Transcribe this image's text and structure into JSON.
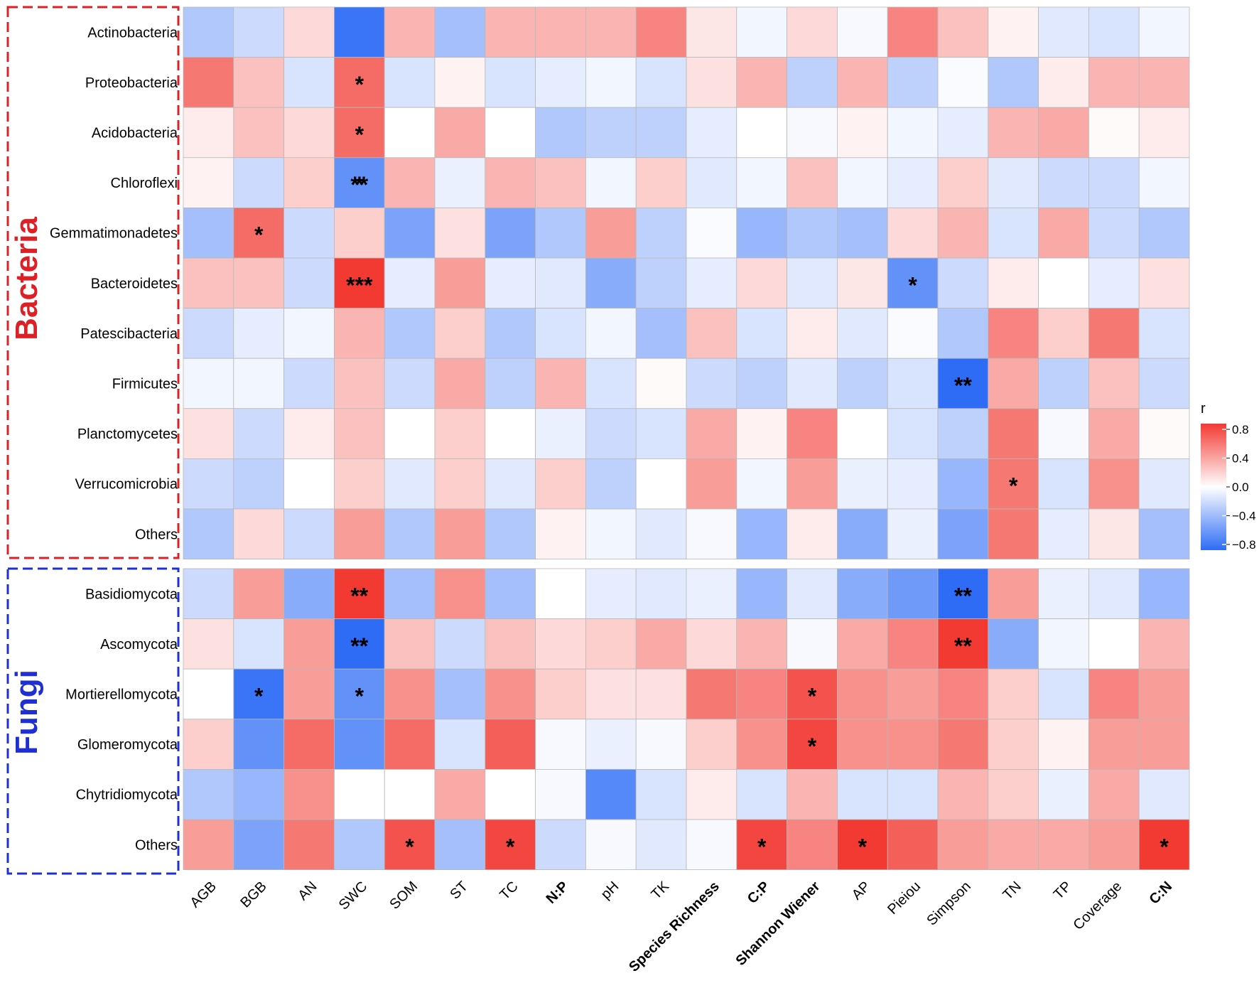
{
  "chart_data": {
    "type": "heatmap",
    "title": "",
    "x_categories": [
      "AGB",
      "BGB",
      "AN",
      "SWC",
      "SOM",
      "ST",
      "TC",
      "N:P",
      "pH",
      "TK",
      "Species Richness",
      "C:P",
      "Shannon Wiener",
      "AP",
      "Pieiou",
      "Simpson",
      "TN",
      "TP",
      "Coverage",
      "C:N"
    ],
    "x_bold": [
      "N:P",
      "Species Richness",
      "C:P",
      "Shannon Wiener",
      "C:N"
    ],
    "colorbar": {
      "label": "r",
      "range": [
        -0.8,
        0.8
      ],
      "ticks": [
        "0.8",
        "0.4",
        "0.0",
        "−0.4",
        "−0.8"
      ],
      "colors": {
        "low": "#2e6cf6",
        "mid": "#ffffff",
        "high": "#f23a33"
      }
    },
    "groups": [
      {
        "name": "Bacteria",
        "color": "#dd1f26",
        "rows": [
          "Actinobacteria",
          "Proteobacteria",
          "Acidobacteria",
          "Chloroflexi",
          "Gemmatimonadetes",
          "Bacteroidetes",
          "Patescibacteria",
          "Firmicutes",
          "Planctomycetes",
          "Verrucomicrobia",
          "Others"
        ],
        "values": [
          [
            -0.3,
            -0.2,
            0.15,
            -0.75,
            0.3,
            -0.35,
            0.3,
            0.3,
            0.3,
            0.5,
            0.1,
            -0.05,
            0.15,
            -0.03,
            0.5,
            0.25,
            0.05,
            -0.12,
            -0.15,
            -0.05
          ],
          [
            0.55,
            0.25,
            -0.15,
            0.6,
            -0.15,
            0.05,
            -0.15,
            -0.1,
            -0.05,
            -0.15,
            0.12,
            0.3,
            -0.25,
            0.3,
            -0.25,
            -0.02,
            -0.3,
            0.08,
            0.3,
            0.3
          ],
          [
            0.08,
            0.25,
            0.15,
            0.6,
            0.0,
            0.35,
            0.0,
            -0.3,
            -0.25,
            -0.25,
            -0.1,
            0.0,
            -0.03,
            0.05,
            -0.05,
            -0.1,
            0.3,
            0.35,
            0.02,
            0.08
          ],
          [
            0.05,
            -0.2,
            0.2,
            -0.6,
            0.3,
            -0.08,
            0.3,
            0.25,
            -0.05,
            0.2,
            -0.12,
            -0.05,
            0.25,
            -0.05,
            -0.1,
            0.2,
            -0.12,
            -0.2,
            -0.2,
            -0.05
          ],
          [
            -0.35,
            0.6,
            -0.2,
            0.2,
            -0.5,
            0.12,
            -0.5,
            -0.3,
            0.4,
            -0.25,
            -0.02,
            -0.4,
            -0.3,
            -0.35,
            0.15,
            0.3,
            -0.15,
            0.35,
            -0.2,
            -0.3
          ],
          [
            0.25,
            0.25,
            -0.2,
            0.85,
            -0.1,
            0.4,
            -0.1,
            -0.12,
            -0.45,
            -0.25,
            -0.1,
            0.15,
            -0.12,
            0.1,
            -0.6,
            -0.2,
            0.08,
            0.0,
            -0.1,
            0.12
          ],
          [
            -0.2,
            -0.1,
            -0.05,
            0.3,
            -0.3,
            0.2,
            -0.3,
            -0.15,
            -0.05,
            -0.35,
            0.25,
            -0.15,
            0.08,
            -0.12,
            -0.02,
            -0.3,
            0.5,
            0.2,
            0.55,
            -0.15
          ],
          [
            -0.05,
            -0.05,
            -0.2,
            0.25,
            -0.2,
            0.35,
            -0.25,
            0.3,
            -0.15,
            0.02,
            -0.2,
            -0.25,
            -0.12,
            -0.25,
            -0.15,
            -0.8,
            0.35,
            -0.25,
            0.25,
            -0.2
          ],
          [
            0.12,
            -0.2,
            0.08,
            0.25,
            0.0,
            0.2,
            0.0,
            -0.08,
            -0.2,
            -0.15,
            0.35,
            0.05,
            0.5,
            0.0,
            -0.15,
            -0.25,
            0.55,
            -0.03,
            0.35,
            0.02
          ],
          [
            -0.2,
            -0.25,
            0.0,
            0.2,
            -0.12,
            0.2,
            -0.12,
            0.2,
            -0.25,
            0.0,
            0.4,
            -0.05,
            0.4,
            -0.08,
            -0.1,
            -0.4,
            0.55,
            -0.15,
            0.45,
            -0.12
          ],
          [
            -0.3,
            0.15,
            -0.2,
            0.4,
            -0.3,
            0.4,
            -0.3,
            0.05,
            -0.05,
            -0.12,
            -0.03,
            -0.4,
            0.08,
            -0.45,
            -0.08,
            -0.5,
            0.55,
            -0.1,
            0.1,
            -0.35
          ]
        ],
        "stars": [
          [
            3,
            3,
            "**"
          ],
          [
            1,
            3,
            "*"
          ],
          [
            2,
            3,
            "*"
          ],
          [
            3,
            3,
            "*"
          ],
          [
            4,
            1,
            "*"
          ],
          [
            5,
            3,
            "***"
          ],
          [
            5,
            14,
            "*"
          ],
          [
            7,
            15,
            "**"
          ],
          [
            9,
            16,
            "*"
          ]
        ]
      },
      {
        "name": "Fungi",
        "color": "#1f2fd6",
        "rows": [
          "Basidiomycota",
          "Ascomycota",
          "Mortierellomycota",
          "Glomeromycota",
          "Chytridiomycota",
          "Others"
        ],
        "values": [
          [
            -0.2,
            0.4,
            -0.45,
            0.85,
            -0.35,
            0.45,
            -0.35,
            0.0,
            -0.1,
            -0.12,
            -0.08,
            -0.4,
            -0.12,
            -0.45,
            -0.55,
            -0.85,
            0.4,
            -0.08,
            -0.12,
            -0.4
          ],
          [
            0.12,
            -0.15,
            0.4,
            -0.85,
            0.25,
            -0.2,
            0.25,
            0.15,
            0.2,
            0.35,
            0.15,
            0.3,
            -0.03,
            0.35,
            0.5,
            0.85,
            -0.45,
            -0.05,
            0.0,
            0.3
          ],
          [
            0.0,
            -0.75,
            0.4,
            -0.6,
            0.45,
            -0.35,
            0.45,
            0.2,
            0.12,
            0.12,
            0.55,
            0.5,
            0.7,
            0.45,
            0.4,
            0.5,
            0.2,
            -0.15,
            0.5,
            0.4
          ],
          [
            0.2,
            -0.6,
            0.6,
            -0.6,
            0.6,
            -0.15,
            0.65,
            -0.03,
            -0.08,
            -0.03,
            0.2,
            0.45,
            0.75,
            0.45,
            0.45,
            0.55,
            0.2,
            0.05,
            0.4,
            0.4
          ],
          [
            -0.3,
            -0.4,
            0.45,
            0.0,
            0.0,
            0.35,
            0.0,
            -0.03,
            -0.65,
            -0.15,
            0.08,
            -0.15,
            0.3,
            -0.15,
            -0.15,
            0.3,
            0.2,
            -0.08,
            0.35,
            -0.12
          ],
          [
            0.4,
            -0.5,
            0.55,
            -0.3,
            0.7,
            -0.35,
            0.75,
            -0.2,
            -0.03,
            -0.12,
            -0.03,
            0.75,
            0.5,
            0.85,
            0.65,
            0.4,
            0.35,
            0.35,
            0.4,
            0.85
          ]
        ],
        "stars": [
          [
            0,
            3,
            "**"
          ],
          [
            0,
            15,
            "**"
          ],
          [
            1,
            3,
            "**"
          ],
          [
            1,
            15,
            "**"
          ],
          [
            2,
            1,
            "*"
          ],
          [
            2,
            3,
            "*"
          ],
          [
            2,
            12,
            "*"
          ],
          [
            3,
            12,
            "*"
          ],
          [
            5,
            4,
            "*"
          ],
          [
            5,
            6,
            "*"
          ],
          [
            5,
            11,
            "*"
          ],
          [
            5,
            13,
            "*"
          ],
          [
            5,
            19,
            "*"
          ]
        ]
      }
    ]
  }
}
